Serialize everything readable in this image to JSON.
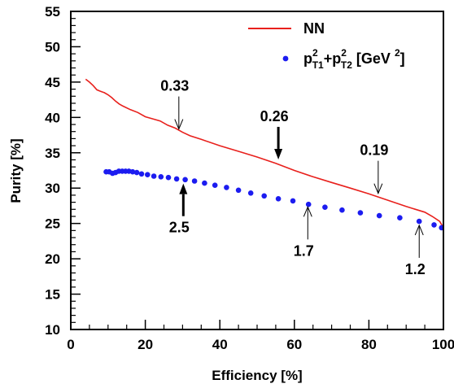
{
  "chart_data": {
    "type": "line",
    "title": "",
    "xlabel": "Efficiency [%]",
    "ylabel": "Purity [%]",
    "xlim": [
      0,
      100
    ],
    "ylim": [
      10,
      55
    ],
    "xticks": [
      0,
      20,
      40,
      60,
      80,
      100
    ],
    "yticks": [
      10,
      15,
      20,
      25,
      30,
      35,
      40,
      45,
      50,
      55
    ],
    "grid": false,
    "legend_position": "top-right",
    "series": [
      {
        "name": "NN",
        "style": "line",
        "color": "#e8201c",
        "points": [
          [
            4,
            45.4
          ],
          [
            5,
            45.0
          ],
          [
            6,
            44.5
          ],
          [
            7,
            43.9
          ],
          [
            8,
            43.7
          ],
          [
            9,
            43.5
          ],
          [
            10,
            43.2
          ],
          [
            11,
            42.8
          ],
          [
            12,
            42.3
          ],
          [
            13,
            41.9
          ],
          [
            14,
            41.6
          ],
          [
            16,
            41.1
          ],
          [
            18,
            40.7
          ],
          [
            20,
            40.1
          ],
          [
            22,
            39.8
          ],
          [
            24,
            39.5
          ],
          [
            26,
            38.9
          ],
          [
            28,
            38.5
          ],
          [
            30,
            37.9
          ],
          [
            32,
            37.4
          ],
          [
            35,
            36.9
          ],
          [
            40,
            36.0
          ],
          [
            45,
            35.2
          ],
          [
            50,
            34.4
          ],
          [
            55,
            33.5
          ],
          [
            60,
            32.5
          ],
          [
            65,
            31.6
          ],
          [
            70,
            30.8
          ],
          [
            75,
            30.0
          ],
          [
            80,
            29.2
          ],
          [
            85,
            28.3
          ],
          [
            90,
            27.4
          ],
          [
            95,
            26.6
          ],
          [
            97,
            26.0
          ],
          [
            99,
            25.3
          ],
          [
            100,
            24.4
          ]
        ]
      },
      {
        "name": "p_T1^2+p_T2^2 [GeV^2]",
        "style": "scatter",
        "color": "#1c1cf0",
        "points": [
          [
            9.5,
            32.3
          ],
          [
            10.3,
            32.3
          ],
          [
            11.2,
            32.1
          ],
          [
            12.0,
            32.2
          ],
          [
            12.9,
            32.4
          ],
          [
            13.8,
            32.4
          ],
          [
            14.7,
            32.4
          ],
          [
            15.6,
            32.4
          ],
          [
            16.6,
            32.3
          ],
          [
            17.7,
            32.2
          ],
          [
            19.0,
            32.0
          ],
          [
            20.6,
            31.9
          ],
          [
            22.3,
            31.7
          ],
          [
            24.2,
            31.6
          ],
          [
            26.2,
            31.5
          ],
          [
            28.4,
            31.3
          ],
          [
            30.7,
            31.2
          ],
          [
            33.2,
            31.0
          ],
          [
            35.9,
            30.7
          ],
          [
            38.7,
            30.4
          ],
          [
            41.8,
            30.1
          ],
          [
            45.0,
            29.7
          ],
          [
            48.3,
            29.3
          ],
          [
            51.9,
            28.9
          ],
          [
            55.7,
            28.5
          ],
          [
            59.6,
            28.2
          ],
          [
            63.8,
            27.7
          ],
          [
            68.2,
            27.3
          ],
          [
            72.8,
            26.9
          ],
          [
            77.7,
            26.5
          ],
          [
            82.8,
            26.1
          ],
          [
            88.3,
            25.8
          ],
          [
            93.5,
            25.3
          ],
          [
            97.5,
            24.8
          ],
          [
            99.5,
            24.4
          ]
        ]
      }
    ],
    "legend": {
      "nn_label": "NN",
      "pt_p": "p",
      "pt_sup1": "2",
      "pt_sub1": "T1",
      "pt_plus": "+p",
      "pt_sup2": "2",
      "pt_sub2": "T2",
      "pt_unit": " [GeV ",
      "pt_unit_sup": "2",
      "pt_close": "]"
    },
    "annotations": [
      {
        "label": "0.33",
        "arrow_style": "open",
        "x": 29,
        "y": 37.9,
        "arrow_from": "above"
      },
      {
        "label": "0.26",
        "arrow_style": "filled",
        "x": 55.7,
        "y": 33.6,
        "arrow_from": "above"
      },
      {
        "label": "0.19",
        "arrow_style": "open",
        "x": 82.5,
        "y": 28.8,
        "arrow_from": "above"
      },
      {
        "label": "2.5",
        "arrow_style": "filled",
        "x": 30.2,
        "y": 31.1,
        "arrow_from": "below"
      },
      {
        "label": "1.7",
        "arrow_style": "open",
        "x": 63.6,
        "y": 27.8,
        "arrow_from": "below"
      },
      {
        "label": "1.2",
        "arrow_style": "open",
        "x": 93.5,
        "y": 25.2,
        "arrow_from": "below"
      }
    ]
  }
}
